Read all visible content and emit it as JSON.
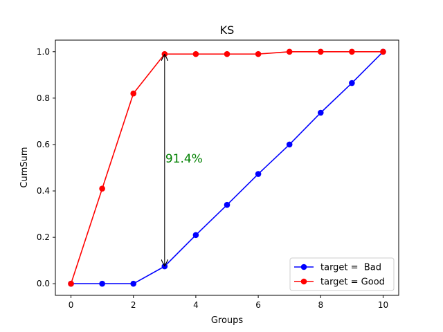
{
  "chart_data": {
    "type": "line",
    "title": "KS",
    "xlabel": "Groups",
    "ylabel": "CumSum",
    "xlim": [
      -0.5,
      10.5
    ],
    "ylim": [
      -0.05,
      1.05
    ],
    "xticks": [
      0,
      2,
      4,
      6,
      8,
      10
    ],
    "yticks": [
      0.0,
      0.2,
      0.4,
      0.6,
      0.8,
      1.0
    ],
    "xtick_labels": [
      "0",
      "2",
      "4",
      "6",
      "8",
      "10"
    ],
    "ytick_labels": [
      "0.0",
      "0.2",
      "0.4",
      "0.6",
      "0.8",
      "1.0"
    ],
    "grid": false,
    "legend_position": "lower-right",
    "x": [
      0,
      1,
      2,
      3,
      4,
      5,
      6,
      7,
      8,
      9,
      10
    ],
    "series": [
      {
        "name": "target =  Bad",
        "color": "#0000ff",
        "marker": "circle",
        "values": [
          0.0,
          0.0,
          0.0,
          0.075,
          0.21,
          0.34,
          0.473,
          0.6,
          0.737,
          0.865,
          1.0
        ]
      },
      {
        "name": "target = Good",
        "color": "#ff0000",
        "marker": "circle",
        "values": [
          0.0,
          0.41,
          0.82,
          0.99,
          0.99,
          0.99,
          0.99,
          1.0,
          1.0,
          1.0,
          1.0
        ]
      }
    ],
    "annotation": {
      "text": "91.4%",
      "color": "#008000",
      "arrow_x": 3,
      "arrow_from": 0.075,
      "arrow_to": 0.99,
      "label_y": 0.54
    }
  }
}
